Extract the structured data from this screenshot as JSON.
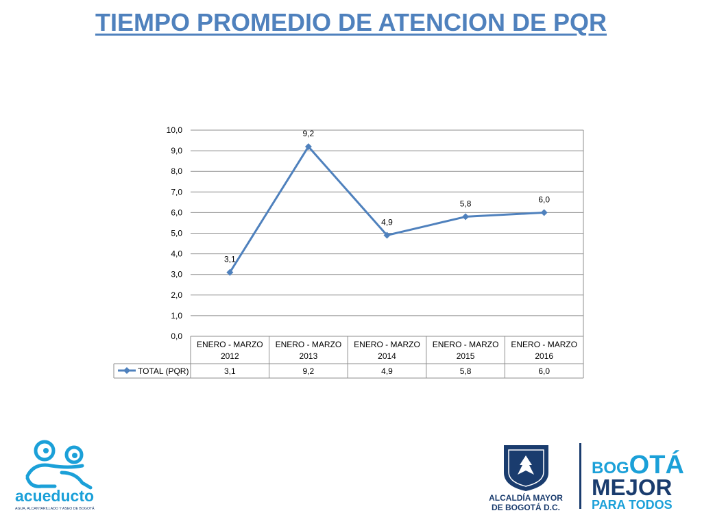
{
  "title": "TIEMPO PROMEDIO DE ATENCION DE PQR",
  "chart_data": {
    "type": "line",
    "categories": [
      [
        "ENERO - MARZO",
        "2012"
      ],
      [
        "ENERO - MARZO",
        "2013"
      ],
      [
        "ENERO - MARZO",
        "2014"
      ],
      [
        "ENERO - MARZO",
        "2015"
      ],
      [
        "ENERO - MARZO",
        "2016"
      ]
    ],
    "series": [
      {
        "name": "TOTAL (PQR)",
        "values": [
          3.1,
          9.2,
          4.9,
          5.8,
          6.0
        ],
        "labels": [
          "3,1",
          "9,2",
          "4,9",
          "5,8",
          "6,0"
        ]
      }
    ],
    "ylim": [
      0,
      10
    ],
    "yticks": [
      "0,0",
      "1,0",
      "2,0",
      "3,0",
      "4,0",
      "5,0",
      "6,0",
      "7,0",
      "8,0",
      "9,0",
      "10,0"
    ],
    "grid": true,
    "data_table": true,
    "color": "#4f81bd"
  },
  "logos": {
    "acueducto": {
      "name": "acueducto",
      "tagline": "AGUA, ALCANTARILLADO Y ASEO DE BOGOTÁ"
    },
    "alcaldia": {
      "line1": "ALCALDÍA MAYOR",
      "line2": "DE BOGOTÁ D.C."
    },
    "bogota": {
      "word1a": "BOG",
      "word1b": "OTÁ",
      "word2": "MEJOR",
      "word3": "PARA TODOS"
    }
  }
}
